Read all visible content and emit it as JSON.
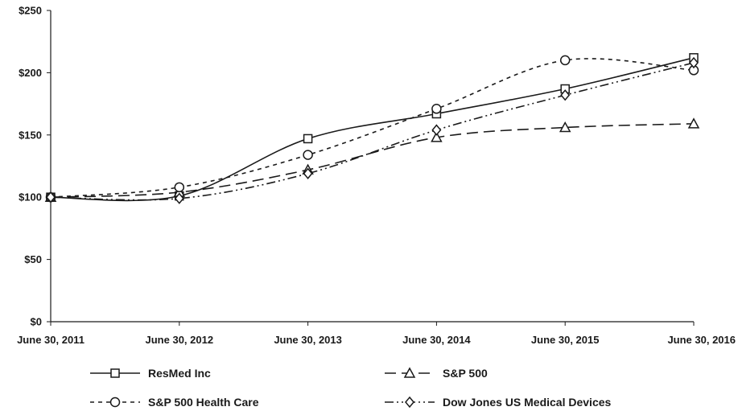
{
  "chart_data": {
    "type": "line",
    "title": "",
    "xlabel": "",
    "ylabel": "",
    "categories": [
      "June 30, 2011",
      "June 30, 2012",
      "June 30, 2013",
      "June 30, 2014",
      "June 30, 2015",
      "June 30, 2016"
    ],
    "y_ticks": [
      "$0",
      "$50",
      "$100",
      "$150",
      "$200",
      "$250"
    ],
    "ylim": [
      0,
      250
    ],
    "grid": false,
    "legend_position": "bottom",
    "series": [
      {
        "name": "ResMed Inc",
        "marker": "square",
        "dash": "solid",
        "values": [
          100,
          101,
          147,
          167,
          187,
          212
        ]
      },
      {
        "name": "S&P 500",
        "marker": "triangle",
        "dash": "long-dash",
        "values": [
          100,
          104,
          122,
          148,
          156,
          159
        ]
      },
      {
        "name": "S&P 500 Health Care",
        "marker": "circle",
        "dash": "short-dash",
        "values": [
          100,
          108,
          134,
          171,
          210,
          202
        ]
      },
      {
        "name": "Dow Jones US Medical Devices",
        "marker": "diamond",
        "dash": "dash-dot-dot",
        "values": [
          100,
          99,
          119,
          154,
          182,
          208
        ]
      }
    ],
    "colors": {
      "line": "#1a1a1a",
      "marker_fill": "#ffffff",
      "axis": "#1a1a1a"
    }
  }
}
